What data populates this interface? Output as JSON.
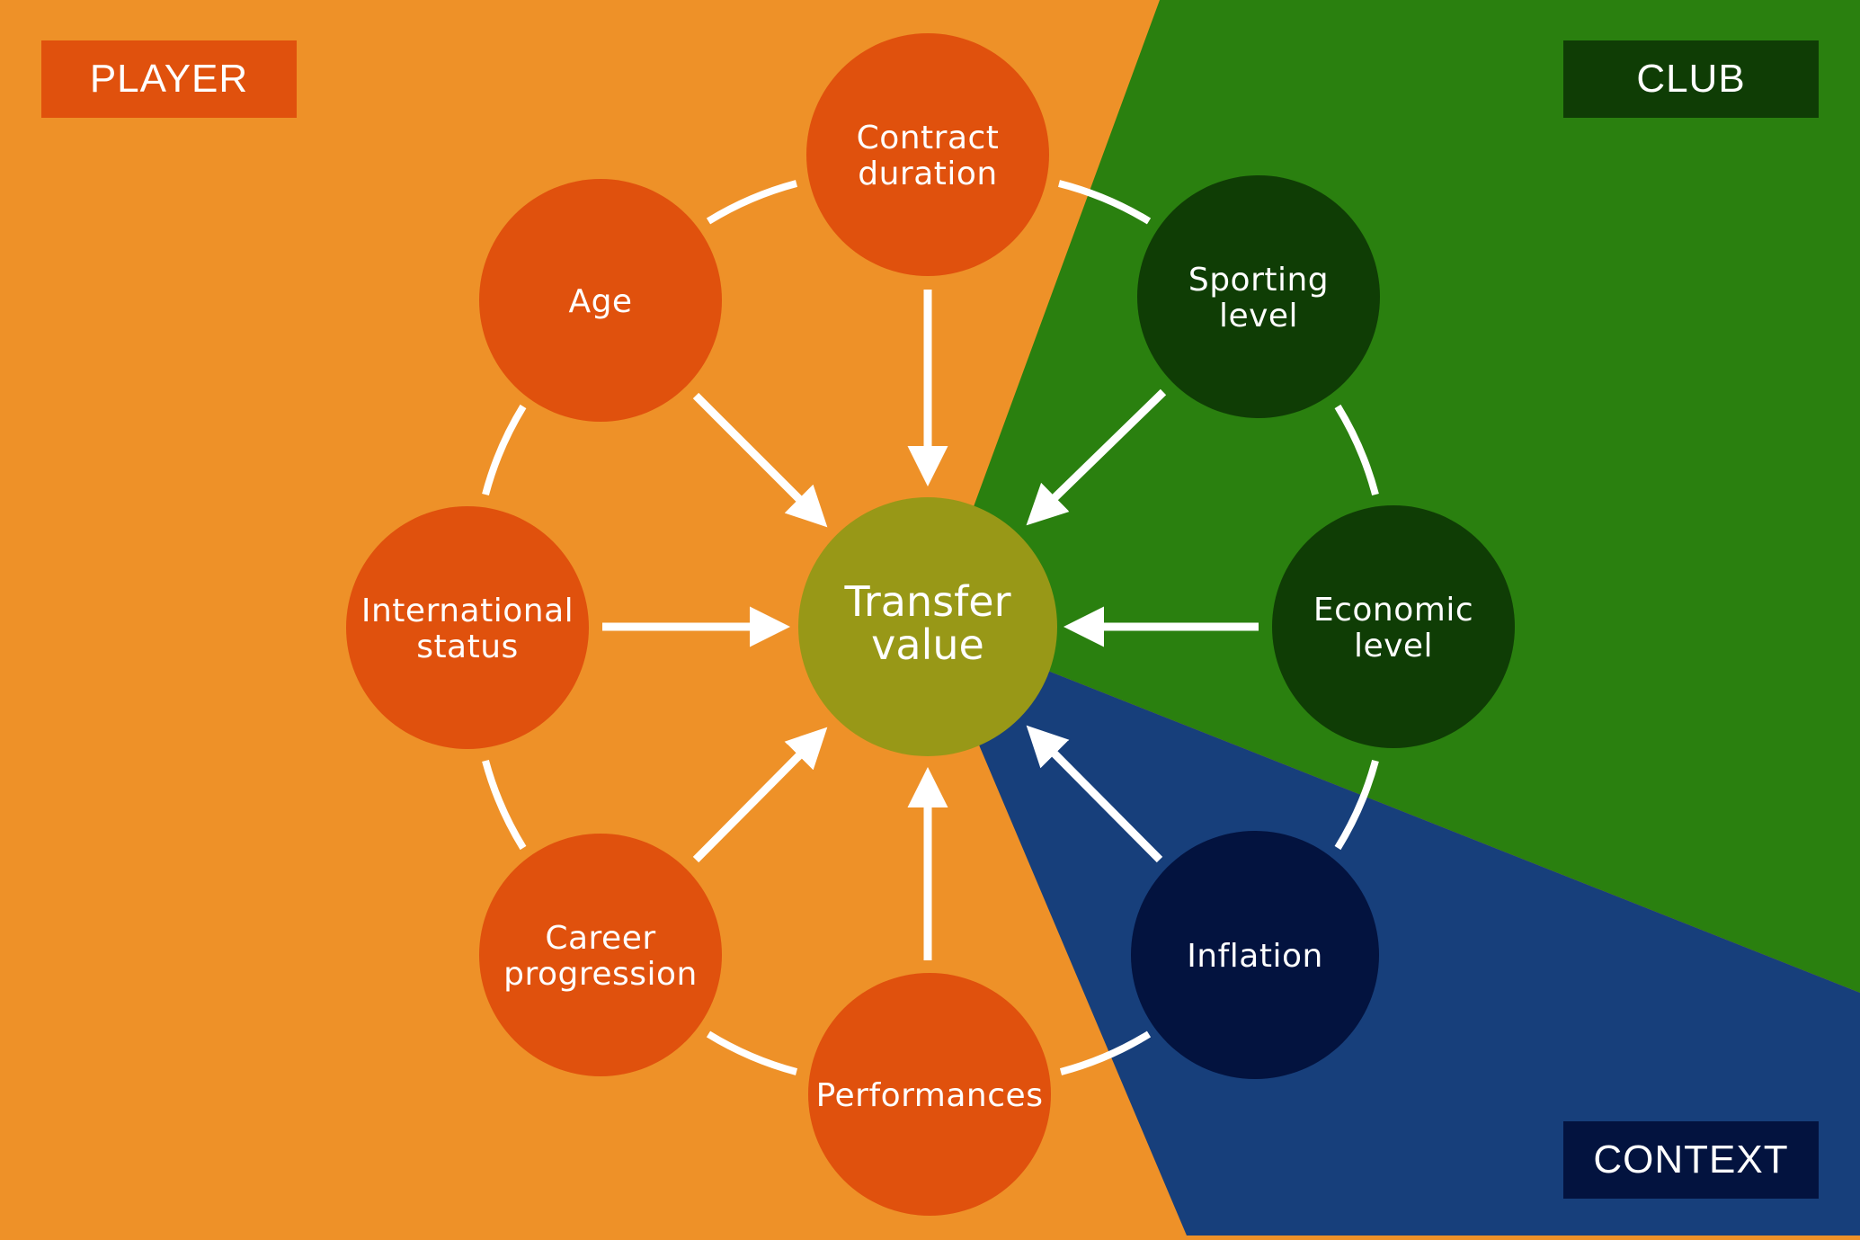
{
  "sections": {
    "player": {
      "label": "PLAYER",
      "color": "#ee9128",
      "tag_color": "#e0510d"
    },
    "club": {
      "label": "CLUB",
      "color": "#2a800f",
      "tag_color": "#0f3d05"
    },
    "context": {
      "label": "CONTEXT",
      "color": "#173f7b",
      "tag_color": "#03133f"
    }
  },
  "center": {
    "label_line1": "Transfer",
    "label_line2": "value",
    "color": "#989817"
  },
  "factors": [
    {
      "id": "contract-duration",
      "line1": "Contract",
      "line2": "duration",
      "group": "player",
      "color": "#e0510d"
    },
    {
      "id": "sporting-level",
      "line1": "Sporting",
      "line2": "level",
      "group": "club",
      "color": "#0f3d05"
    },
    {
      "id": "economic-level",
      "line1": "Economic",
      "line2": "level",
      "group": "club",
      "color": "#0f3d05"
    },
    {
      "id": "inflation",
      "line1": "Inflation",
      "line2": "",
      "group": "context",
      "color": "#03133f"
    },
    {
      "id": "performances",
      "line1": "Performances",
      "line2": "",
      "group": "player",
      "color": "#e0510d"
    },
    {
      "id": "career-progression",
      "line1": "Career",
      "line2": "progression",
      "group": "player",
      "color": "#e0510d"
    },
    {
      "id": "international-status",
      "line1": "International",
      "line2": "status",
      "group": "player",
      "color": "#e0510d"
    },
    {
      "id": "age",
      "line1": "Age",
      "line2": "",
      "group": "player",
      "color": "#e0510d"
    }
  ],
  "arrow_color": "#ffffff"
}
